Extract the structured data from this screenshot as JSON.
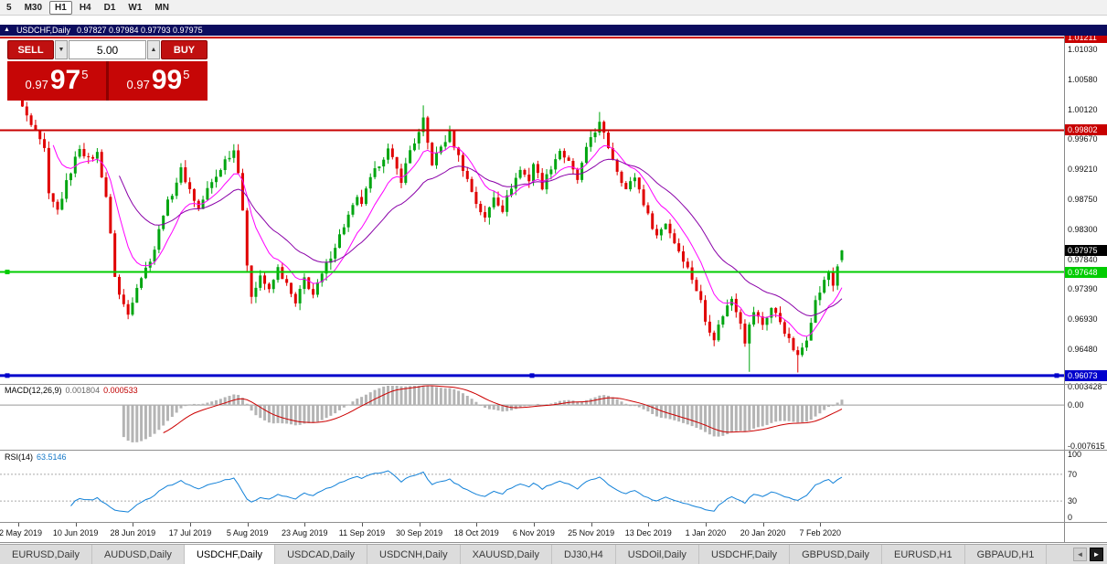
{
  "toolbar": {
    "timeframes": [
      {
        "label": "5",
        "active": false
      },
      {
        "label": "M30",
        "active": false
      },
      {
        "label": "H1",
        "active": true
      },
      {
        "label": "H4",
        "active": false
      },
      {
        "label": "D1",
        "active": false
      },
      {
        "label": "W1",
        "active": false
      },
      {
        "label": "MN",
        "active": false
      }
    ]
  },
  "chart_window": {
    "symbol_period": "USDCHF,Daily",
    "ohlc": "0.97827 0.97984 0.97793 0.97975"
  },
  "trade_panel": {
    "sell_label": "SELL",
    "buy_label": "BUY",
    "volume": "5.00",
    "spin_down_icon": "▼",
    "spin_up_icon": "▲",
    "sell_price": {
      "prefix": "0.97",
      "big": "97",
      "sup": "5"
    },
    "buy_price": {
      "prefix": "0.97",
      "big": "99",
      "sup": "5"
    }
  },
  "price_axis": {
    "labels": [
      "1.01030",
      "1.00580",
      "1.00120",
      "0.99670",
      "0.99210",
      "0.98750",
      "0.98300",
      "0.97840",
      "0.97390",
      "0.96930",
      "0.96480"
    ],
    "current": {
      "label": "0.97975",
      "value": 0.97975,
      "bg": "#000000"
    }
  },
  "lines": [
    {
      "label": "1.01211",
      "value": 1.01211,
      "color": "#c80000",
      "width": 2,
      "handles": []
    },
    {
      "label": "0.99802",
      "value": 0.99802,
      "color": "#c80000",
      "width": 2,
      "handles": []
    },
    {
      "label": "0.97648",
      "value": 0.97648,
      "color": "#00cc00",
      "width": 2,
      "handles": [
        "left"
      ]
    },
    {
      "label": "0.96073",
      "value": 0.96073,
      "color": "#0000cc",
      "width": 3,
      "handles": [
        "left",
        "center",
        "right"
      ]
    }
  ],
  "macd_panel": {
    "name": "MACD(12,26,9)",
    "value_main": "0.001804",
    "value_signal": "0.000533",
    "axis_labels": [
      "0.003428",
      "0.00",
      "-0.007615"
    ]
  },
  "rsi_panel": {
    "name": "RSI(14)",
    "value": "63.5146",
    "axis_labels": [
      100,
      70,
      30,
      0
    ],
    "levels": [
      70,
      30
    ]
  },
  "date_axis": {
    "labels": [
      "22 May 2019",
      "10 Jun 2019",
      "28 Jun 2019",
      "17 Jul 2019",
      "5 Aug 2019",
      "23 Aug 2019",
      "11 Sep 2019",
      "30 Sep 2019",
      "18 Oct 2019",
      "6 Nov 2019",
      "25 Nov 2019",
      "13 Dec 2019",
      "1 Jan 2020",
      "20 Jan 2020",
      "7 Feb 2020"
    ]
  },
  "tabs": {
    "scroll_left": "◄",
    "scroll_right": "►",
    "items": [
      {
        "label": "EURUSD,Daily",
        "active": false
      },
      {
        "label": "AUDUSD,Daily",
        "active": false
      },
      {
        "label": "USDCHF,Daily",
        "active": true
      },
      {
        "label": "USDCAD,Daily",
        "active": false
      },
      {
        "label": "USDCNH,Daily",
        "active": false
      },
      {
        "label": "XAUUSD,Daily",
        "active": false
      },
      {
        "label": "DJ30,H4",
        "active": false
      },
      {
        "label": "USDOil,Daily",
        "active": false
      },
      {
        "label": "USDCHF,Daily",
        "active": false
      },
      {
        "label": "GBPUSD,Daily",
        "active": false
      },
      {
        "label": "EURUSD,H1",
        "active": false
      },
      {
        "label": "GBPAUD,H1",
        "active": false
      }
    ]
  },
  "chart_data": {
    "type": "candlestick",
    "symbol": "USDCHF",
    "timeframe": "Daily",
    "current_ohlc": {
      "open": 0.97827,
      "high": 0.97984,
      "low": 0.97793,
      "close": 0.97975
    },
    "y_range": [
      0.9596,
      1.0124
    ],
    "n_candles": 190,
    "candle_up_color": "#00a510",
    "candle_down_color": "#e00000",
    "close_anchors": [
      [
        0,
        1.0045
      ],
      [
        2,
        1.003
      ],
      [
        4,
        1.0
      ],
      [
        6,
        0.9975
      ],
      [
        8,
        0.995
      ],
      [
        9,
        0.988
      ],
      [
        11,
        0.9858
      ],
      [
        13,
        0.99
      ],
      [
        16,
        0.9955
      ],
      [
        18,
        0.9935
      ],
      [
        20,
        0.9945
      ],
      [
        22,
        0.988
      ],
      [
        23,
        0.982
      ],
      [
        24,
        0.976
      ],
      [
        25,
        0.973
      ],
      [
        27,
        0.97
      ],
      [
        29,
        0.9745
      ],
      [
        31,
        0.977
      ],
      [
        33,
        0.98
      ],
      [
        35,
        0.9855
      ],
      [
        37,
        0.9885
      ],
      [
        39,
        0.992
      ],
      [
        41,
        0.989
      ],
      [
        43,
        0.986
      ],
      [
        45,
        0.989
      ],
      [
        47,
        0.991
      ],
      [
        49,
        0.9935
      ],
      [
        51,
        0.995
      ],
      [
        52,
        0.992
      ],
      [
        53,
        0.986
      ],
      [
        54,
        0.977
      ],
      [
        55,
        0.973
      ],
      [
        57,
        0.976
      ],
      [
        59,
        0.9735
      ],
      [
        61,
        0.977
      ],
      [
        63,
        0.9745
      ],
      [
        65,
        0.9715
      ],
      [
        67,
        0.9755
      ],
      [
        69,
        0.973
      ],
      [
        71,
        0.976
      ],
      [
        73,
        0.979
      ],
      [
        75,
        0.982
      ],
      [
        77,
        0.985
      ],
      [
        79,
        0.9875
      ],
      [
        80,
        0.987
      ],
      [
        82,
        0.9905
      ],
      [
        84,
        0.993
      ],
      [
        86,
        0.995
      ],
      [
        87,
        0.9935
      ],
      [
        89,
        0.9905
      ],
      [
        91,
        0.995
      ],
      [
        93,
        0.9975
      ],
      [
        94,
        0.9995
      ],
      [
        95,
        0.996
      ],
      [
        96,
        0.993
      ],
      [
        98,
        0.9955
      ],
      [
        100,
        0.9975
      ],
      [
        102,
        0.994
      ],
      [
        104,
        0.9905
      ],
      [
        106,
        0.987
      ],
      [
        108,
        0.9845
      ],
      [
        110,
        0.988
      ],
      [
        112,
        0.986
      ],
      [
        114,
        0.9895
      ],
      [
        116,
        0.992
      ],
      [
        118,
        0.9905
      ],
      [
        119,
        0.993
      ],
      [
        121,
        0.9895
      ],
      [
        123,
        0.9925
      ],
      [
        125,
        0.995
      ],
      [
        127,
        0.993
      ],
      [
        129,
        0.9905
      ],
      [
        131,
        0.995
      ],
      [
        132,
        0.997
      ],
      [
        134,
        0.999
      ],
      [
        136,
        0.9955
      ],
      [
        138,
        0.992
      ],
      [
        140,
        0.989
      ],
      [
        142,
        0.991
      ],
      [
        144,
        0.987
      ],
      [
        145,
        0.985
      ],
      [
        147,
        0.982
      ],
      [
        149,
        0.984
      ],
      [
        151,
        0.981
      ],
      [
        153,
        0.9785
      ],
      [
        155,
        0.9755
      ],
      [
        157,
        0.972
      ],
      [
        158,
        0.969
      ],
      [
        160,
        0.9665
      ],
      [
        162,
        0.97
      ],
      [
        164,
        0.9725
      ],
      [
        166,
        0.969
      ],
      [
        167,
        0.966
      ],
      [
        169,
        0.9705
      ],
      [
        171,
        0.9685
      ],
      [
        173,
        0.971
      ],
      [
        175,
        0.969
      ],
      [
        177,
        0.966
      ],
      [
        179,
        0.9635
      ],
      [
        181,
        0.9665
      ],
      [
        183,
        0.972
      ],
      [
        185,
        0.975
      ],
      [
        186,
        0.9765
      ],
      [
        187,
        0.9745
      ],
      [
        188,
        0.9775
      ],
      [
        189,
        0.97975
      ]
    ],
    "wick_overrides": {
      "27": {
        "low": 0.9693
      },
      "94": {
        "high": 1.0018
      },
      "134": {
        "high": 1.0008
      },
      "168": {
        "low": 0.9613
      },
      "179": {
        "low": 0.9612
      }
    },
    "horizontal_lines": [
      1.01211,
      0.99802,
      0.97648,
      0.96073
    ],
    "moving_averages": [
      {
        "period": 10,
        "color": "#ff00ff"
      },
      {
        "period": 25,
        "color": "#8a00a8"
      }
    ],
    "macd": {
      "fast": 12,
      "slow": 26,
      "signal": 9,
      "hist_color": "#b4b4b4",
      "signal_color": "#cc0000",
      "y_top": 0.003428,
      "y_bottom": -0.007615
    },
    "rsi": {
      "period": 14,
      "color": "#1080d8",
      "last": 63.5146
    },
    "date_ticks_every": 13
  }
}
